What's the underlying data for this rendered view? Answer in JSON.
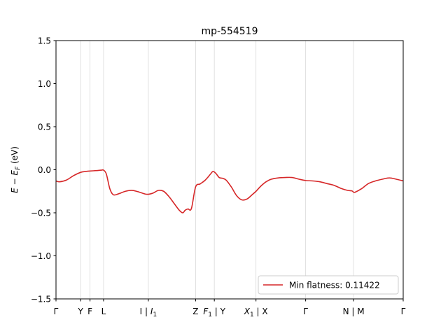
{
  "chart_data": {
    "type": "line",
    "title": "mp-554519",
    "ylabel": "E − E",
    "ylabel_sub": "F",
    "ylabel_unit": " (eV)",
    "xlim": [
      0,
      1
    ],
    "ylim": [
      -1.5,
      1.5
    ],
    "yticks": [
      {
        "value": -1.5,
        "label": "−1.5"
      },
      {
        "value": -1.0,
        "label": "−1.0"
      },
      {
        "value": -0.5,
        "label": "−0.5"
      },
      {
        "value": 0.0,
        "label": "0.0"
      },
      {
        "value": 0.5,
        "label": "0.5"
      },
      {
        "value": 1.0,
        "label": "1.0"
      },
      {
        "value": 1.5,
        "label": "1.5"
      }
    ],
    "xticks": [
      {
        "pos": 0.0,
        "parts": [
          [
            "Γ",
            ""
          ]
        ]
      },
      {
        "pos": 0.071,
        "parts": [
          [
            "Y",
            ""
          ]
        ]
      },
      {
        "pos": 0.098,
        "parts": [
          [
            "F",
            ""
          ]
        ]
      },
      {
        "pos": 0.137,
        "parts": [
          [
            "L",
            ""
          ]
        ]
      },
      {
        "pos": 0.266,
        "parts": [
          [
            "I | ",
            ""
          ],
          [
            "I",
            "i"
          ],
          [
            "1",
            "sub"
          ]
        ]
      },
      {
        "pos": 0.402,
        "parts": [
          [
            "Z",
            ""
          ]
        ]
      },
      {
        "pos": 0.456,
        "parts": [
          [
            "F",
            "i"
          ],
          [
            "1",
            "sub"
          ],
          [
            " | Y",
            ""
          ]
        ]
      },
      {
        "pos": 0.576,
        "parts": [
          [
            "X",
            "i"
          ],
          [
            "1",
            "sub"
          ],
          [
            " | X",
            ""
          ]
        ]
      },
      {
        "pos": 0.719,
        "parts": [
          [
            "Γ",
            ""
          ]
        ]
      },
      {
        "pos": 0.857,
        "parts": [
          [
            "N | M",
            ""
          ]
        ]
      },
      {
        "pos": 1.0,
        "parts": [
          [
            "Γ",
            ""
          ]
        ]
      }
    ],
    "legend": {
      "placement": "lower-right",
      "label": "Min flatness: 0.11422"
    },
    "series": [
      {
        "name": "Min flatness: 0.11422",
        "color": "#d62728",
        "x": [
          0.0,
          0.01,
          0.03,
          0.05,
          0.071,
          0.085,
          0.098,
          0.115,
          0.13,
          0.137,
          0.145,
          0.155,
          0.165,
          0.18,
          0.2,
          0.22,
          0.24,
          0.255,
          0.266,
          0.28,
          0.295,
          0.31,
          0.325,
          0.34,
          0.355,
          0.365,
          0.372,
          0.38,
          0.39,
          0.402,
          0.415,
          0.43,
          0.445,
          0.452,
          0.46,
          0.47,
          0.48,
          0.49,
          0.505,
          0.52,
          0.535,
          0.55,
          0.565,
          0.576,
          0.59,
          0.605,
          0.62,
          0.64,
          0.66,
          0.68,
          0.7,
          0.719,
          0.74,
          0.76,
          0.78,
          0.8,
          0.82,
          0.84,
          0.852,
          0.857,
          0.862,
          0.88,
          0.9,
          0.92,
          0.94,
          0.96,
          0.98,
          1.0
        ],
        "y": [
          -0.13,
          -0.14,
          -0.12,
          -0.07,
          -0.03,
          -0.02,
          -0.015,
          -0.01,
          -0.005,
          -0.005,
          -0.05,
          -0.22,
          -0.29,
          -0.28,
          -0.25,
          -0.24,
          -0.26,
          -0.28,
          -0.285,
          -0.27,
          -0.24,
          -0.25,
          -0.31,
          -0.39,
          -0.47,
          -0.5,
          -0.47,
          -0.455,
          -0.45,
          -0.2,
          -0.165,
          -0.12,
          -0.05,
          -0.02,
          -0.04,
          -0.09,
          -0.1,
          -0.12,
          -0.2,
          -0.3,
          -0.35,
          -0.34,
          -0.29,
          -0.25,
          -0.19,
          -0.14,
          -0.11,
          -0.095,
          -0.09,
          -0.09,
          -0.11,
          -0.125,
          -0.13,
          -0.14,
          -0.16,
          -0.18,
          -0.215,
          -0.24,
          -0.245,
          -0.26,
          -0.26,
          -0.22,
          -0.16,
          -0.13,
          -0.11,
          -0.095,
          -0.11,
          -0.13
        ]
      }
    ]
  }
}
